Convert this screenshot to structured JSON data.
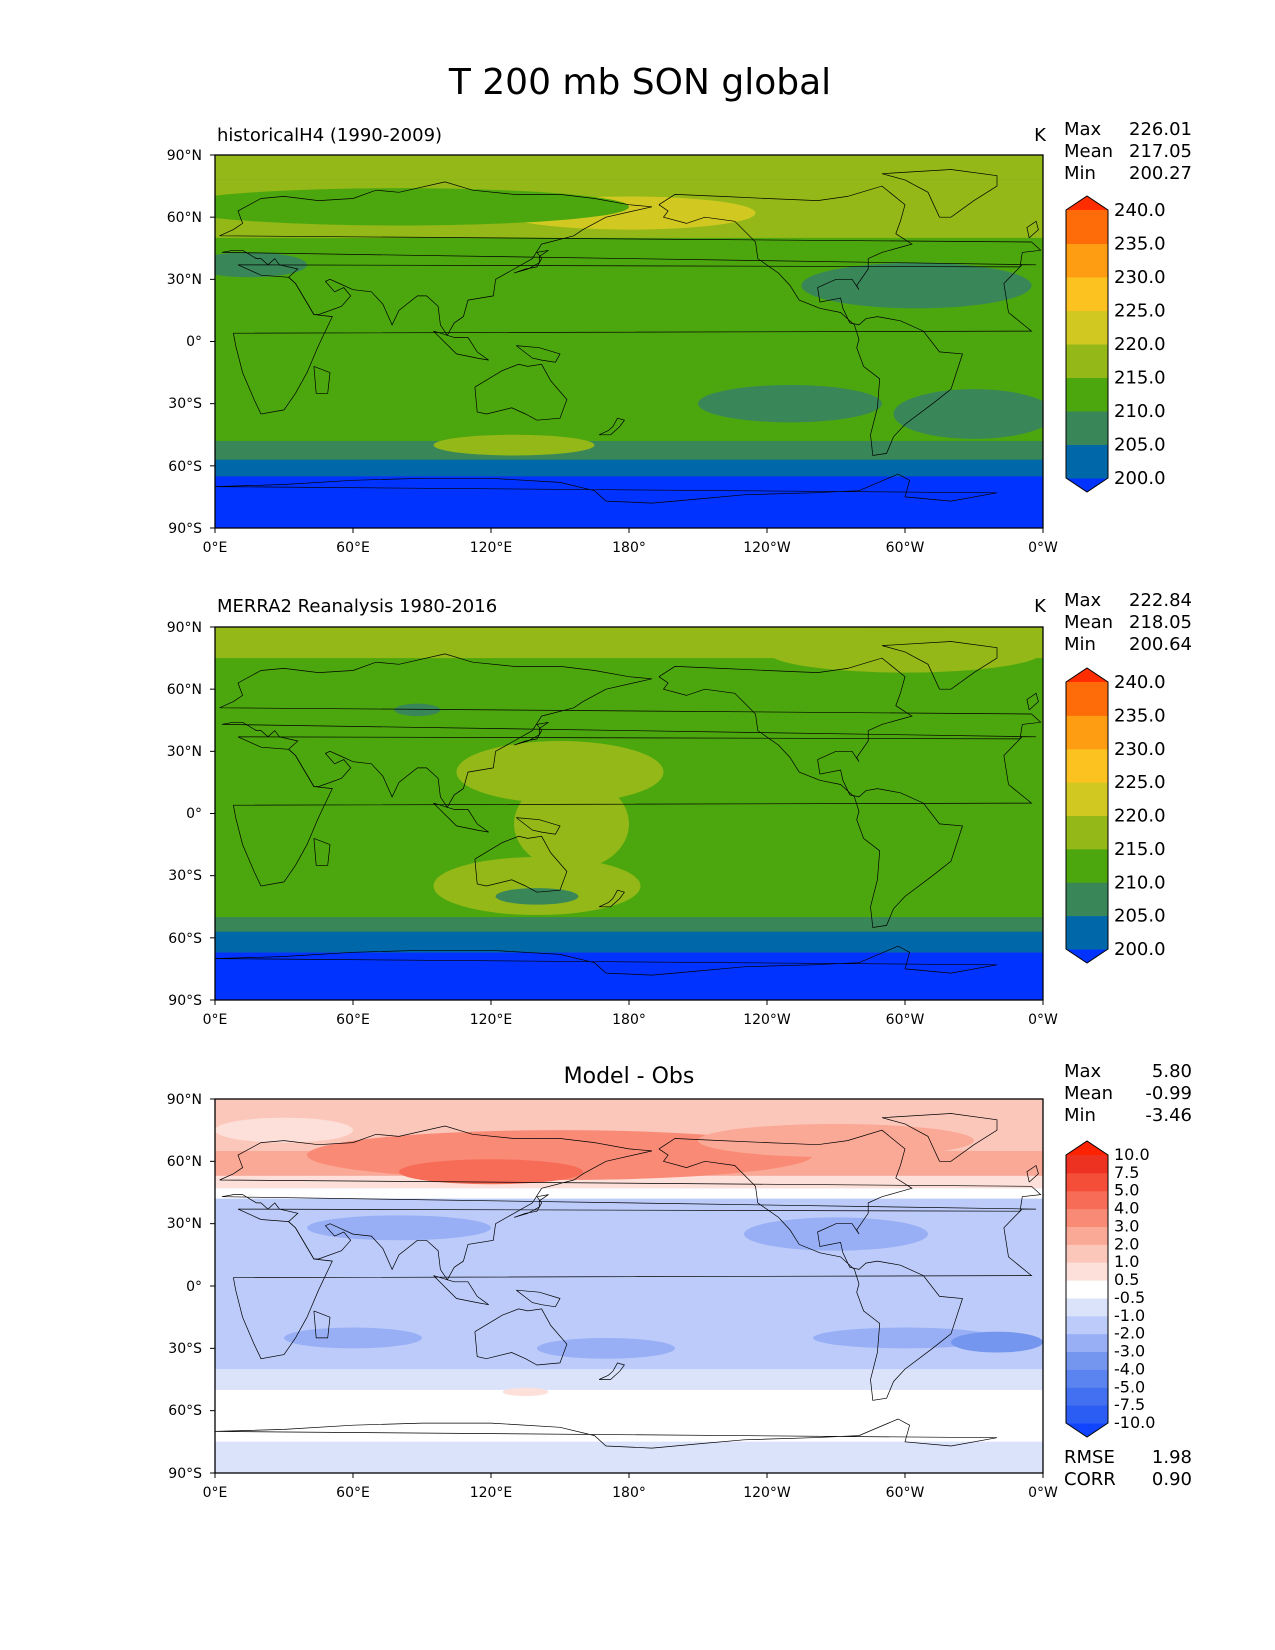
{
  "figure": {
    "title": "T 200 mb SON global"
  },
  "axes": {
    "lat_ticks": [
      "90°N",
      "60°N",
      "30°N",
      "0°",
      "30°S",
      "60°S",
      "90°S"
    ],
    "lon_ticks": [
      "0°E",
      "60°E",
      "120°E",
      "180°",
      "120°W",
      "60°W",
      "0°W"
    ]
  },
  "stat_labels": {
    "max": "Max",
    "mean": "Mean",
    "min": "Min",
    "rmse": "RMSE",
    "corr": "CORR"
  },
  "chart_data": [
    {
      "type": "heatmap",
      "title": "historicalH4 (1990-2009)",
      "units": "K",
      "xlim": [
        0,
        360
      ],
      "ylim": [
        -90,
        90
      ],
      "stats": {
        "max": "226.01",
        "mean": "217.05",
        "min": "200.27"
      },
      "colorbar": {
        "levels": [
          "200.0",
          "205.0",
          "210.0",
          "215.0",
          "220.0",
          "225.0",
          "230.0",
          "235.0",
          "240.0"
        ],
        "colors": [
          "#0033ff",
          "#0068a8",
          "#398659",
          "#4ca70e",
          "#93b817",
          "#d1c922",
          "#fcc21f",
          "#fe9d12",
          "#fe6c0a",
          "#ff2d00"
        ]
      },
      "field": {
        "background_level": 3,
        "lat_bands": [
          {
            "lat_from": 90,
            "lat_to": 78,
            "level": 4
          },
          {
            "lat_from": 78,
            "lat_to": 50,
            "level": 4
          },
          {
            "lat_from": -48,
            "lat_to": -57,
            "level": 2
          },
          {
            "lat_from": -57,
            "lat_to": -65,
            "level": 1
          },
          {
            "lat_from": -65,
            "lat_to": -90,
            "level": 0
          }
        ],
        "blobs": [
          {
            "lon": 180,
            "lat": 62,
            "dlon": 55,
            "dlat": 8,
            "level": 5
          },
          {
            "lon": 80,
            "lat": 65,
            "dlon": 100,
            "dlat": 9,
            "level": 3
          },
          {
            "lon": 305,
            "lat": 27,
            "dlon": 50,
            "dlat": 11,
            "level": 2
          },
          {
            "lon": 15,
            "lat": 37,
            "dlon": 25,
            "dlat": 6,
            "level": 2
          },
          {
            "lon": 250,
            "lat": -30,
            "dlon": 40,
            "dlat": 9,
            "level": 2
          },
          {
            "lon": 330,
            "lat": -35,
            "dlon": 35,
            "dlat": 12,
            "level": 2
          },
          {
            "lon": 130,
            "lat": -50,
            "dlon": 35,
            "dlat": 5,
            "level": 4
          }
        ]
      }
    },
    {
      "type": "heatmap",
      "title": "MERRA2 Reanalysis 1980-2016",
      "units": "K",
      "xlim": [
        0,
        360
      ],
      "ylim": [
        -90,
        90
      ],
      "stats": {
        "max": "222.84",
        "mean": "218.05",
        "min": "200.64"
      },
      "colorbar": {
        "levels": [
          "200.0",
          "205.0",
          "210.0",
          "215.0",
          "220.0",
          "225.0",
          "230.0",
          "235.0",
          "240.0"
        ],
        "colors": [
          "#0033ff",
          "#0068a8",
          "#398659",
          "#4ca70e",
          "#93b817",
          "#d1c922",
          "#fcc21f",
          "#fe9d12",
          "#fe6c0a",
          "#ff2d00"
        ]
      },
      "field": {
        "background_level": 3,
        "lat_bands": [
          {
            "lat_from": 90,
            "lat_to": 75,
            "level": 4
          },
          {
            "lat_from": -50,
            "lat_to": -57,
            "level": 2
          },
          {
            "lat_from": -57,
            "lat_to": -67,
            "level": 1
          },
          {
            "lat_from": -67,
            "lat_to": -90,
            "level": 0
          }
        ],
        "blobs": [
          {
            "lon": 300,
            "lat": 78,
            "dlon": 60,
            "dlat": 10,
            "level": 4
          },
          {
            "lon": 150,
            "lat": 20,
            "dlon": 45,
            "dlat": 15,
            "level": 4
          },
          {
            "lon": 155,
            "lat": -5,
            "dlon": 25,
            "dlat": 22,
            "level": 4
          },
          {
            "lon": 140,
            "lat": -35,
            "dlon": 45,
            "dlat": 14,
            "level": 4
          },
          {
            "lon": 88,
            "lat": 50,
            "dlon": 10,
            "dlat": 3,
            "level": 2
          },
          {
            "lon": 140,
            "lat": -40,
            "dlon": 18,
            "dlat": 4,
            "level": 2
          }
        ]
      }
    },
    {
      "type": "heatmap",
      "title": "Model - Obs",
      "xlim": [
        0,
        360
      ],
      "ylim": [
        -90,
        90
      ],
      "stats": {
        "max": "5.80",
        "mean": "-0.99",
        "min": "-3.46"
      },
      "rmse": "1.98",
      "corr": "0.90",
      "colorbar": {
        "levels": [
          "-10.0",
          "-7.5",
          "-5.0",
          "-4.0",
          "-3.0",
          "-2.0",
          "-1.0",
          "-0.5",
          "0.5",
          "1.0",
          "2.0",
          "3.0",
          "4.0",
          "5.0",
          "7.5",
          "10.0"
        ],
        "colors": [
          "#1144ff",
          "#2b5cf4",
          "#4270f0",
          "#5b84f0",
          "#7596ef",
          "#98aff6",
          "#bccbf9",
          "#dbe3fb",
          "#ffffff",
          "#fde0da",
          "#fcc7bb",
          "#fba997",
          "#f98a76",
          "#f76c56",
          "#f44d38",
          "#ee3222",
          "#ff2200"
        ]
      },
      "field": {
        "background_level": 6,
        "lat_bands": [
          {
            "lat_from": 90,
            "lat_to": 65,
            "level": 10
          },
          {
            "lat_from": 65,
            "lat_to": 53,
            "level": 11
          },
          {
            "lat_from": 53,
            "lat_to": 47,
            "level": 9
          },
          {
            "lat_from": 47,
            "lat_to": 42,
            "level": 8
          },
          {
            "lat_from": 42,
            "lat_to": 33,
            "level": 6
          },
          {
            "lat_from": -40,
            "lat_to": -50,
            "level": 7
          },
          {
            "lat_from": -50,
            "lat_to": -75,
            "level": 8
          },
          {
            "lat_from": -75,
            "lat_to": -90,
            "level": 7
          }
        ],
        "blobs": [
          {
            "lon": 150,
            "lat": 63,
            "dlon": 110,
            "dlat": 12,
            "level": 12
          },
          {
            "lon": 120,
            "lat": 55,
            "dlon": 40,
            "dlat": 6,
            "level": 13
          },
          {
            "lon": 270,
            "lat": 70,
            "dlon": 60,
            "dlat": 8,
            "level": 11
          },
          {
            "lon": 30,
            "lat": 75,
            "dlon": 30,
            "dlat": 6,
            "level": 9
          },
          {
            "lon": 270,
            "lat": 25,
            "dlon": 40,
            "dlat": 8,
            "level": 5
          },
          {
            "lon": 80,
            "lat": 28,
            "dlon": 40,
            "dlat": 6,
            "level": 5
          },
          {
            "lon": 60,
            "lat": -25,
            "dlon": 30,
            "dlat": 5,
            "level": 5
          },
          {
            "lon": 170,
            "lat": -30,
            "dlon": 30,
            "dlat": 5,
            "level": 5
          },
          {
            "lon": 300,
            "lat": -25,
            "dlon": 40,
            "dlat": 5,
            "level": 5
          },
          {
            "lon": 340,
            "lat": -27,
            "dlon": 20,
            "dlat": 5,
            "level": 4
          },
          {
            "lon": 135,
            "lat": -51,
            "dlon": 10,
            "dlat": 2,
            "level": 9
          }
        ]
      }
    }
  ]
}
